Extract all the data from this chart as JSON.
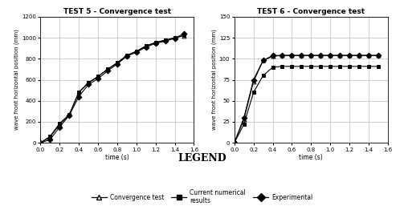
{
  "test5_title": "TEST 5 - Convergence test",
  "test6_title": "TEST 6 - Convergence test",
  "xlabel": "time (s)",
  "ylabel": "wave front horizontal position (mm)",
  "legend_title": "LEGEND",
  "legend_entries": [
    "Convergence test",
    "Current numerical\nresults",
    "Experimental"
  ],
  "t5_convergence_x": [
    0.0,
    0.1,
    0.2,
    0.3,
    0.4,
    0.5,
    0.6,
    0.7,
    0.8,
    0.9,
    1.0,
    1.1,
    1.2,
    1.3,
    1.4,
    1.5
  ],
  "t5_convergence_y": [
    0,
    55,
    175,
    265,
    480,
    570,
    630,
    700,
    760,
    830,
    870,
    920,
    955,
    975,
    1000,
    1020
  ],
  "t5_numerical_x": [
    0.0,
    0.1,
    0.2,
    0.3,
    0.4,
    0.5,
    0.6,
    0.7,
    0.8,
    0.9,
    1.0,
    1.1,
    1.2,
    1.3,
    1.4,
    1.5
  ],
  "t5_numerical_y": [
    0,
    60,
    185,
    268,
    482,
    572,
    632,
    702,
    762,
    832,
    872,
    922,
    957,
    977,
    1002,
    1022
  ],
  "t5_experimental_x": [
    0.0,
    0.1,
    0.2,
    0.3,
    0.4,
    0.5,
    0.6,
    0.7,
    0.8,
    0.9,
    1.0,
    1.1,
    1.2,
    1.3,
    1.4,
    1.5
  ],
  "t5_experimental_y": [
    0,
    30,
    150,
    260,
    440,
    555,
    610,
    685,
    750,
    825,
    862,
    912,
    947,
    968,
    995,
    1042
  ],
  "t6_convergence_x": [
    0.0,
    0.1,
    0.2,
    0.3,
    0.4,
    0.5,
    0.6,
    0.7,
    0.8,
    0.9,
    1.0,
    1.1,
    1.2,
    1.3,
    1.4,
    1.5
  ],
  "t6_convergence_y": [
    0,
    28,
    73,
    98,
    103,
    104,
    104,
    104,
    104,
    104,
    104,
    104,
    104,
    104,
    104,
    104
  ],
  "t6_numerical_x": [
    0.0,
    0.1,
    0.2,
    0.3,
    0.4,
    0.5,
    0.6,
    0.7,
    0.8,
    0.9,
    1.0,
    1.1,
    1.2,
    1.3,
    1.4,
    1.5
  ],
  "t6_numerical_y": [
    0,
    22,
    60,
    80,
    90,
    91,
    91,
    91,
    91,
    91,
    91,
    91,
    91,
    91,
    91,
    91
  ],
  "t6_experimental_x": [
    0.0,
    0.1,
    0.2,
    0.3,
    0.4,
    0.5,
    0.6,
    0.7,
    0.8,
    0.9,
    1.0,
    1.1,
    1.2,
    1.3,
    1.4,
    1.5
  ],
  "t6_experimental_y": [
    0,
    30,
    75,
    98,
    104,
    104,
    104,
    104,
    104,
    104,
    104,
    104,
    104,
    104,
    104,
    104
  ],
  "t5_xlim": [
    0.0,
    1.6
  ],
  "t5_ylim": [
    0,
    1200
  ],
  "t5_xticks": [
    0.0,
    0.2,
    0.4,
    0.6,
    0.8,
    1.0,
    1.2,
    1.4,
    1.6
  ],
  "t5_yticks": [
    0,
    200,
    400,
    600,
    800,
    1000,
    1200
  ],
  "t6_xlim": [
    0.0,
    1.6
  ],
  "t6_ylim": [
    0,
    150
  ],
  "t6_xticks": [
    0.0,
    0.2,
    0.4,
    0.6,
    0.8,
    1.0,
    1.2,
    1.4,
    1.6
  ],
  "t6_yticks": [
    0,
    25,
    50,
    75,
    100,
    125,
    150
  ],
  "bg_color": "#ffffff",
  "grid_color": "#bbbbbb",
  "figsize": [
    5.03,
    2.62
  ],
  "dpi": 100
}
